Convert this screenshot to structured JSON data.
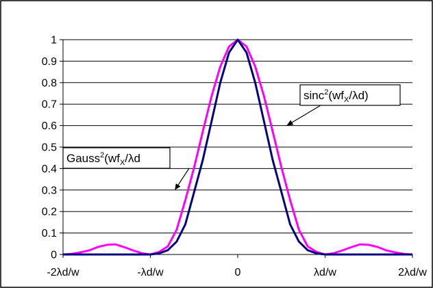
{
  "chart_data": {
    "type": "line",
    "xlim": [
      -2,
      2
    ],
    "ylim": [
      0,
      1
    ],
    "x_ticks": [
      {
        "value": -2,
        "label": "-2λd/w"
      },
      {
        "value": -1,
        "label": "-λd/w"
      },
      {
        "value": 0,
        "label": "0"
      },
      {
        "value": 1,
        "label": "λd/w"
      },
      {
        "value": 2,
        "label": "2λd/w"
      }
    ],
    "y_ticks": [
      {
        "value": 0,
        "label": "0"
      },
      {
        "value": 0.1,
        "label": "0.1"
      },
      {
        "value": 0.2,
        "label": "0.2"
      },
      {
        "value": 0.3,
        "label": "0.3"
      },
      {
        "value": 0.4,
        "label": "0.4"
      },
      {
        "value": 0.5,
        "label": "0.5"
      },
      {
        "value": 0.6,
        "label": "0.6"
      },
      {
        "value": 0.7,
        "label": "0.7"
      },
      {
        "value": 0.8,
        "label": "0.8"
      },
      {
        "value": 0.9,
        "label": "0.9"
      },
      {
        "value": 1,
        "label": "1"
      }
    ],
    "grid": true,
    "series": [
      {
        "color": "#ff00ff",
        "x": [
          -2.0,
          -1.9,
          -1.8,
          -1.7,
          -1.6,
          -1.5,
          -1.4,
          -1.3,
          -1.2,
          -1.1,
          -1.0,
          -0.9,
          -0.8,
          -0.7,
          -0.6,
          -0.5,
          -0.4,
          -0.3,
          -0.2,
          -0.1,
          0.0,
          0.1,
          0.2,
          0.3,
          0.4,
          0.5,
          0.6,
          0.7,
          0.8,
          0.9,
          1.0,
          1.1,
          1.2,
          1.3,
          1.4,
          1.5,
          1.6,
          1.7,
          1.8,
          1.9,
          2.0
        ],
        "y": [
          0.0,
          0.003,
          0.01,
          0.019,
          0.035,
          0.045,
          0.047,
          0.034,
          0.019,
          0.006,
          0.0,
          0.012,
          0.038,
          0.115,
          0.253,
          0.405,
          0.573,
          0.737,
          0.875,
          0.968,
          1.0,
          0.968,
          0.875,
          0.737,
          0.573,
          0.405,
          0.253,
          0.115,
          0.038,
          0.012,
          0.0,
          0.006,
          0.019,
          0.034,
          0.047,
          0.045,
          0.035,
          0.019,
          0.01,
          0.003,
          0.0
        ]
      },
      {
        "color": "#000080",
        "x": [
          -2.0,
          -1.8,
          -1.6,
          -1.4,
          -1.2,
          -1.0,
          -0.9,
          -0.8,
          -0.7,
          -0.6,
          -0.5,
          -0.4,
          -0.3,
          -0.2,
          -0.1,
          0.0,
          0.1,
          0.2,
          0.3,
          0.4,
          0.5,
          0.6,
          0.7,
          0.8,
          0.9,
          1.0,
          1.2,
          1.4,
          1.6,
          1.8,
          2.0
        ],
        "y": [
          0.0,
          0.0,
          0.0,
          0.0,
          0.0,
          0.0,
          0.005,
          0.02,
          0.06,
          0.14,
          0.29,
          0.44,
          0.62,
          0.8,
          0.94,
          1.0,
          0.94,
          0.8,
          0.62,
          0.44,
          0.29,
          0.14,
          0.06,
          0.02,
          0.005,
          0.0,
          0.0,
          0.0,
          0.0,
          0.0,
          0.0
        ]
      }
    ],
    "annotations": [
      {
        "base": "sinc",
        "sup": "2",
        "mid": "(wf",
        "sub": "X",
        "tail": "/λd)",
        "point_x": 0.56,
        "point_y": 0.6
      },
      {
        "base": "Gauss",
        "sup": "2",
        "mid": "(wf",
        "sub": "X",
        "tail": "/λd",
        "point_x": -0.72,
        "point_y": 0.3
      }
    ]
  }
}
